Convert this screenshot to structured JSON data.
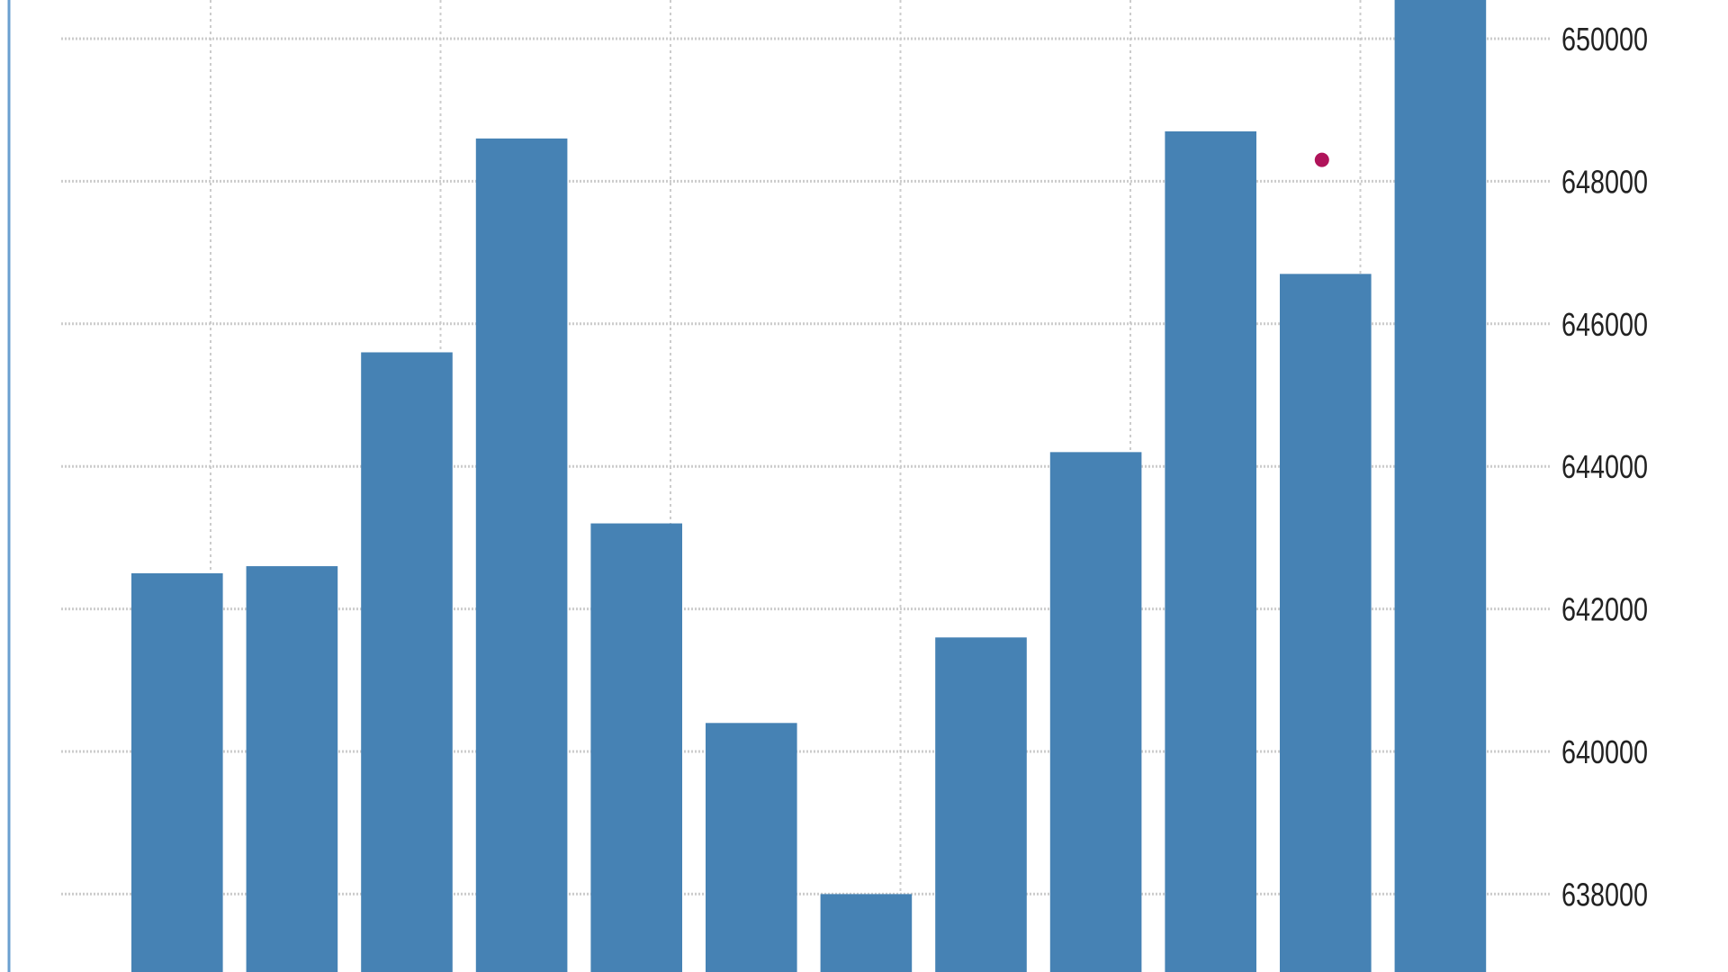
{
  "chart_data": {
    "type": "bar",
    "title": "",
    "xlabel": "",
    "ylabel": "",
    "ylim": [
      636700,
      650700
    ],
    "yaxis_position": "right",
    "y_ticks": [
      638000,
      640000,
      642000,
      644000,
      646000,
      648000,
      650000
    ],
    "y_tick_labels": [
      "638000",
      "640000",
      "642000",
      "644000",
      "646000",
      "648000",
      "650000"
    ],
    "grid": true,
    "values": [
      642500,
      642600,
      645600,
      648600,
      643200,
      640400,
      638000,
      641600,
      644200,
      648700,
      646700,
      651000
    ],
    "forecast_marker": {
      "bar_index": 10,
      "value": 648300
    },
    "colors": {
      "bar": "#4682b4",
      "marker": "#b0135a",
      "grid": "#cccccc",
      "axis": "#6a9fd0"
    }
  }
}
